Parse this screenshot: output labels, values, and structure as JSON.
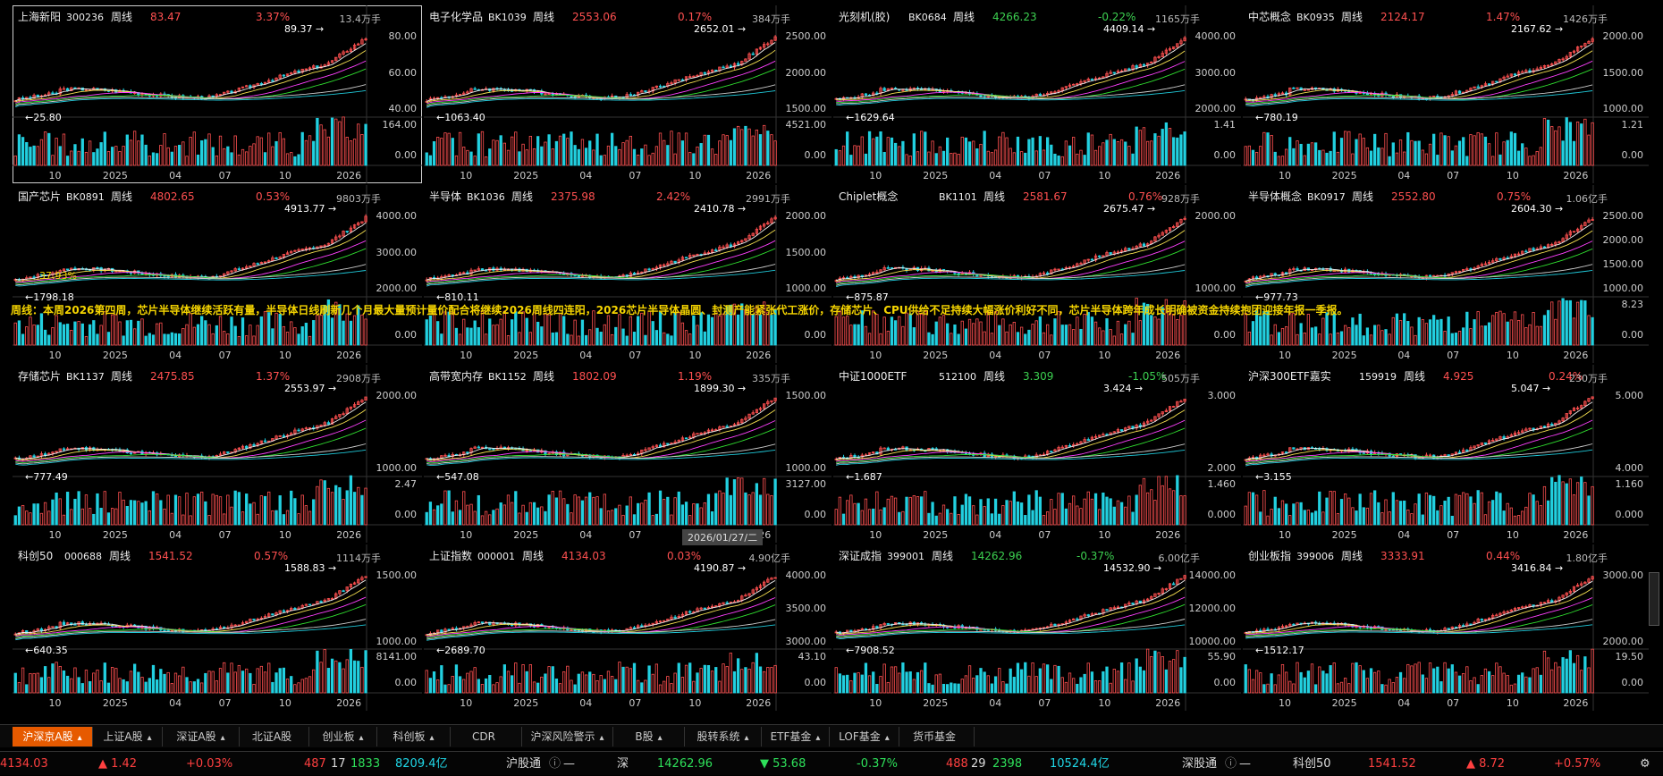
{
  "panels": [
    {
      "name": "上海新阳",
      "code": "300236",
      "period": "周线",
      "price": "83.47",
      "change": "3.37%",
      "dir": "up",
      "volume": "13.4万手",
      "peak": "89.37",
      "low": "25.80",
      "ticks": [
        "80.00",
        "60.00",
        "40.00"
      ],
      "vticks": [
        "164.00",
        "0.00"
      ],
      "xlabels": [
        "10",
        "2025",
        "04",
        "07",
        "10",
        "2026"
      ]
    },
    {
      "name": "电子化学品",
      "code": "BK1039",
      "period": "周线",
      "price": "2553.06",
      "change": "0.17%",
      "dir": "up",
      "volume": "384万手",
      "peak": "2652.01",
      "low": "1063.40",
      "ticks": [
        "2500.00",
        "2000.00",
        "1500.00"
      ],
      "vticks": [
        "4521.00",
        "0.00"
      ],
      "xlabels": [
        "10",
        "2025",
        "04",
        "07",
        "10",
        "2026"
      ]
    },
    {
      "name": "光刻机(胶)",
      "code": "BK0684",
      "period": "周线",
      "price": "4266.23",
      "change": "-0.22%",
      "dir": "dn",
      "volume": "1165万手",
      "peak": "4409.14",
      "low": "1629.64",
      "ticks": [
        "4000.00",
        "3000.00",
        "2000.00"
      ],
      "vticks": [
        "1.41",
        "0.00"
      ],
      "xlabels": [
        "10",
        "2025",
        "04",
        "07",
        "10",
        "2026"
      ]
    },
    {
      "name": "中芯概念",
      "code": "BK0935",
      "period": "周线",
      "price": "2124.17",
      "change": "1.47%",
      "dir": "up",
      "volume": "1426万手",
      "peak": "2167.62",
      "low": "780.19",
      "ticks": [
        "2000.00",
        "1500.00",
        "1000.00"
      ],
      "vticks": [
        "1.21",
        "0.00"
      ],
      "xlabels": [
        "10",
        "2025",
        "04",
        "07",
        "10",
        "2026"
      ]
    },
    {
      "name": "国产芯片",
      "code": "BK0891",
      "period": "周线",
      "price": "4802.65",
      "change": "0.53%",
      "dir": "up",
      "volume": "9803万手",
      "peak": "4913.77",
      "low": "1798.18",
      "ticks": [
        "4000.00",
        "3000.00",
        "2000.00"
      ],
      "vticks": [
        "",
        "0.00"
      ],
      "xlabels": [
        "10",
        "2025",
        "04",
        "07",
        "10",
        "2026"
      ],
      "extra": "37.93%"
    },
    {
      "name": "半导体",
      "code": "BK1036",
      "period": "周线",
      "price": "2375.98",
      "change": "2.42%",
      "dir": "up",
      "volume": "2991万手",
      "peak": "2410.78",
      "low": "810.11",
      "ticks": [
        "2000.00",
        "1500.00",
        "1000.00"
      ],
      "vticks": [
        "",
        "0.00"
      ],
      "xlabels": [
        "10",
        "2025",
        "04",
        "07",
        "10",
        "2026"
      ]
    },
    {
      "name": "Chiplet概念",
      "code": "BK1101",
      "period": "周线",
      "price": "2581.67",
      "change": "0.76%",
      "dir": "up",
      "volume": "928万手",
      "peak": "2675.47",
      "low": "875.87",
      "ticks": [
        "2000.00",
        "1000.00"
      ],
      "vticks": [
        "",
        "0.00"
      ],
      "xlabels": [
        "10",
        "2025",
        "04",
        "07",
        "10",
        "2026"
      ]
    },
    {
      "name": "半导体概念",
      "code": "BK0917",
      "period": "周线",
      "price": "2552.80",
      "change": "0.75%",
      "dir": "up",
      "volume": "1.06亿手",
      "peak": "2604.30",
      "low": "977.73",
      "ticks": [
        "2500.00",
        "2000.00",
        "1500.00",
        "1000.00"
      ],
      "vticks": [
        "8.23",
        "0.00"
      ],
      "xlabels": [
        "10",
        "2025",
        "04",
        "07",
        "10",
        "2026"
      ]
    },
    {
      "name": "存储芯片",
      "code": "BK1137",
      "period": "周线",
      "price": "2475.85",
      "change": "1.37%",
      "dir": "up",
      "volume": "2908万手",
      "peak": "2553.97",
      "low": "777.49",
      "ticks": [
        "2000.00",
        "1000.00"
      ],
      "vticks": [
        "2.47",
        "0.00"
      ],
      "xlabels": [
        "10",
        "2025",
        "04",
        "07",
        "10",
        "2026"
      ]
    },
    {
      "name": "高带宽内存",
      "code": "BK1152",
      "period": "周线",
      "price": "1802.09",
      "change": "1.19%",
      "dir": "up",
      "volume": "335万手",
      "peak": "1899.30",
      "low": "547.08",
      "ticks": [
        "1500.00",
        "1000.00"
      ],
      "vticks": [
        "3127.00",
        "0.00"
      ],
      "xlabels": [
        "10",
        "2025",
        "04",
        "07",
        "10",
        "2026"
      ]
    },
    {
      "name": "中证1000ETF",
      "code": "512100",
      "period": "周线",
      "price": "3.309",
      "change": "-1.05%",
      "dir": "dn",
      "volume": "505万手",
      "peak": "3.424",
      "low": "1.687",
      "ticks": [
        "3.000",
        "2.000"
      ],
      "vticks": [
        "1.460",
        "0.000"
      ],
      "xlabels": [
        "10",
        "2025",
        "04",
        "07",
        "10",
        "2026"
      ]
    },
    {
      "name": "沪深300ETF嘉实",
      "code": "159919",
      "period": "周线",
      "price": "4.925",
      "change": "0.24%",
      "dir": "up",
      "volume": "230万手",
      "peak": "5.047",
      "low": "3.155",
      "ticks": [
        "5.000",
        "4.000"
      ],
      "vticks": [
        "1.160",
        "0.000"
      ],
      "xlabels": [
        "10",
        "2025",
        "04",
        "07",
        "10",
        "2026"
      ]
    },
    {
      "name": "科创50",
      "code": "000688",
      "period": "周线",
      "price": "1541.52",
      "change": "0.57%",
      "dir": "up",
      "volume": "1114万手",
      "peak": "1588.83",
      "low": "640.35",
      "ticks": [
        "1500.00",
        "1000.00"
      ],
      "vticks": [
        "8141.00",
        "0.00"
      ],
      "xlabels": [
        "10",
        "2025",
        "04",
        "07",
        "10",
        "2026"
      ]
    },
    {
      "name": "上证指数",
      "code": "000001",
      "period": "周线",
      "price": "4134.03",
      "change": "0.03%",
      "dir": "up",
      "volume": "4.90亿手",
      "peak": "4190.87",
      "low": "2689.70",
      "ticks": [
        "4000.00",
        "3500.00",
        "3000.00"
      ],
      "vticks": [
        "43.10",
        "0.00"
      ],
      "xlabels": [
        "10",
        "2025",
        "04",
        "07",
        "10",
        "2026"
      ]
    },
    {
      "name": "深证成指",
      "code": "399001",
      "period": "周线",
      "price": "14262.96",
      "change": "-0.37%",
      "dir": "dn",
      "volume": "6.00亿手",
      "peak": "14532.90",
      "low": "7908.52",
      "ticks": [
        "14000.00",
        "12000.00",
        "10000.00"
      ],
      "vticks": [
        "55.90",
        "0.00"
      ],
      "xlabels": [
        "10",
        "2025",
        "04",
        "07",
        "10",
        "2026"
      ]
    },
    {
      "name": "创业板指",
      "code": "399006",
      "period": "周线",
      "price": "3333.91",
      "change": "0.44%",
      "dir": "up",
      "volume": "1.80亿手",
      "peak": "3416.84",
      "low": "1512.17",
      "ticks": [
        "3000.00",
        "2000.00"
      ],
      "vticks": [
        "19.50",
        "0.00"
      ],
      "xlabels": [
        "10",
        "2025",
        "04",
        "07",
        "10",
        "2026"
      ]
    }
  ],
  "marquee": "周线：本周2026第四周，芯片半导体继续活跃有量，半导体日线刷新几个月最大量预计量价配合将继续2026周线四连阳，2026芯片半导体晶圆、封测产能紧张代工涨价，存储芯片、CPU供给不足持续大幅涨价利好不同，芯片半导体跨年成长明确被资金持续抱团迎接年报一季报。",
  "datetag": "2026/01/27/二",
  "tabs": [
    {
      "label": "沪深京A股",
      "arrow": "▴",
      "on": true
    },
    {
      "label": "上证A股",
      "arrow": "▴"
    },
    {
      "label": "深证A股",
      "arrow": "▴"
    },
    {
      "label": "北证A股",
      "arrow": ""
    },
    {
      "label": "创业板",
      "arrow": "▴"
    },
    {
      "label": "科创板",
      "arrow": "▴"
    },
    {
      "label": "CDR",
      "arrow": ""
    },
    {
      "label": "沪深风险警示",
      "arrow": "▴"
    },
    {
      "label": "B股",
      "arrow": "▴"
    },
    {
      "label": "股转系统",
      "arrow": "▴"
    },
    {
      "label": "ETF基金",
      "arrow": "▴"
    },
    {
      "label": "LOF基金",
      "arrow": "▴"
    },
    {
      "label": "货币基金",
      "arrow": ""
    }
  ],
  "status": {
    "sh_index": "4134.03",
    "sh_chg": "▲ 1.42",
    "sh_pct": "+0.03%",
    "sh_up": "487",
    "sh_flat": "17",
    "sh_down": "1833",
    "sh_amt": "8209.4亿",
    "hgt": "沪股通",
    "hgt_val": "—",
    "sz_label": "深",
    "sz_index": "14262.96",
    "sz_chg": "▼ 53.68",
    "sz_pct": "-0.37%",
    "sz_up": "488",
    "sz_flat": "29",
    "sz_down": "2398",
    "sz_amt": "10524.4亿",
    "sgt": "深股通",
    "sgt_val": "—",
    "kc_label": "科创50",
    "kc_index": "1541.52",
    "kc_chg": "▲ 8.72",
    "kc_pct": "+0.57%"
  },
  "colors": {
    "up": "#ff5050",
    "down": "#3cd050",
    "accent": "#e65a00"
  }
}
